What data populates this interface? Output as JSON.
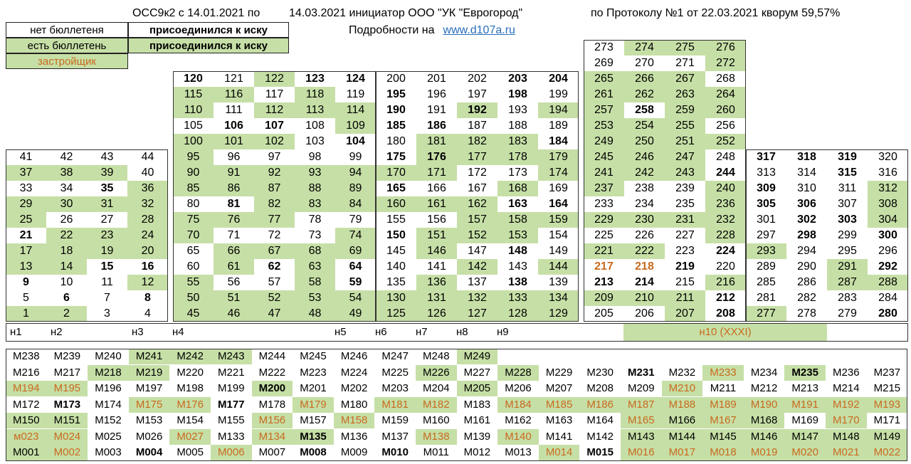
{
  "header": {
    "part1": "ОСС9к2 с 14.01.2021 по",
    "part2": "14.03.2021 инициатор ООО \"УК \"Еврогород\"",
    "part3": "по Протоколу №1 от 22.03.2021 кворум 59,57%",
    "details_label": "Подробности на",
    "link_text": "www.d107a.ru"
  },
  "legend": {
    "no_ballot": "нет бюллетеня",
    "has_ballot": "есть бюллетень",
    "joined": "присоединился к иску",
    "developer": "застройщик"
  },
  "colors": {
    "green": "#c6dfa6",
    "developer_text": "#c86a1e"
  },
  "sections": {
    "s1": [
      [
        "41",
        "42",
        "43",
        "44"
      ],
      [
        "37",
        "38",
        "39",
        "40"
      ],
      [
        "33",
        "34",
        "35",
        "36"
      ],
      [
        "29",
        "30",
        "31",
        "32"
      ],
      [
        "25",
        "26",
        "27",
        "28"
      ],
      [
        "21",
        "22",
        "23",
        "24"
      ],
      [
        "17",
        "18",
        "19",
        "20"
      ],
      [
        "13",
        "14",
        "15",
        "16"
      ],
      [
        "9",
        "10",
        "11",
        "12"
      ],
      [
        "5",
        "6",
        "7",
        "8"
      ],
      [
        "1",
        "2",
        "3",
        "4"
      ]
    ],
    "s1_style": [
      "....",
      "gggw",
      "wwbg",
      "gggg",
      "gwwg",
      "bggg",
      "gggg",
      "ggbb",
      "bwwg",
      "wbwb",
      "ggww"
    ],
    "s2": [
      [
        "120",
        "121",
        "122",
        "123",
        "124"
      ],
      [
        "115",
        "116",
        "117",
        "118",
        "119"
      ],
      [
        "110",
        "111",
        "112",
        "113",
        "114"
      ],
      [
        "105",
        "106",
        "107",
        "108",
        "109"
      ],
      [
        "100",
        "101",
        "102",
        "103",
        "104"
      ],
      [
        "95",
        "96",
        "97",
        "98",
        "99"
      ],
      [
        "90",
        "91",
        "92",
        "93",
        "94"
      ],
      [
        "85",
        "86",
        "87",
        "88",
        "89"
      ],
      [
        "80",
        "81",
        "82",
        "83",
        "84"
      ],
      [
        "75",
        "76",
        "77",
        "78",
        "79"
      ],
      [
        "70",
        "71",
        "72",
        "73",
        "74"
      ],
      [
        "65",
        "66",
        "67",
        "68",
        "69"
      ],
      [
        "60",
        "61",
        "62",
        "63",
        "64"
      ],
      [
        "55",
        "56",
        "57",
        "58",
        "59"
      ],
      [
        "50",
        "51",
        "52",
        "53",
        "54"
      ],
      [
        "45",
        "46",
        "47",
        "48",
        "49"
      ]
    ],
    "s2_style": [
      "BwgBB",
      "ggwgw",
      "gwggg",
      "wBBwg",
      "gggwB",
      "gwwww",
      "ggggg",
      "ggggg",
      "wBggg",
      "gggww",
      "gwwwg",
      "wgggg",
      "wgBgB",
      "gwwgB",
      "ggggg",
      "ggggg"
    ],
    "s3": [
      [
        "200",
        "201",
        "202",
        "203",
        "204"
      ],
      [
        "195",
        "196",
        "197",
        "198",
        "199"
      ],
      [
        "190",
        "191",
        "192",
        "193",
        "194"
      ],
      [
        "185",
        "186",
        "187",
        "188",
        "189"
      ],
      [
        "180",
        "181",
        "182",
        "183",
        "184"
      ],
      [
        "175",
        "176",
        "177",
        "178",
        "179"
      ],
      [
        "170",
        "171",
        "172",
        "173",
        "174"
      ],
      [
        "165",
        "166",
        "167",
        "168",
        "169"
      ],
      [
        "160",
        "161",
        "162",
        "163",
        "164"
      ],
      [
        "155",
        "156",
        "157",
        "158",
        "159"
      ],
      [
        "150",
        "151",
        "152",
        "153",
        "154"
      ],
      [
        "145",
        "146",
        "147",
        "148",
        "149"
      ],
      [
        "140",
        "141",
        "142",
        "143",
        "144"
      ],
      [
        "135",
        "136",
        "137",
        "138",
        "139"
      ],
      [
        "130",
        "131",
        "132",
        "133",
        "134"
      ],
      [
        "125",
        "126",
        "127",
        "128",
        "129"
      ]
    ],
    "s3_style": [
      "wwwBB",
      "Bwwbw",
      "BwGwg",
      "BBwww",
      "wgggB",
      "BGggg",
      "ggwwg",
      "Bwwgw",
      "gggBB",
      "wwggg",
      "Bgggw",
      "wgwBw",
      "wwgwg",
      "wgwBw",
      "ggggg",
      "ggggg"
    ],
    "s4": [
      [
        "273",
        "274",
        "275",
        "276"
      ],
      [
        "269",
        "270",
        "271",
        "272"
      ],
      [
        "265",
        "266",
        "267",
        "268"
      ],
      [
        "261",
        "262",
        "263",
        "264"
      ],
      [
        "257",
        "258",
        "259",
        "260"
      ],
      [
        "253",
        "254",
        "255",
        "256"
      ],
      [
        "249",
        "250",
        "251",
        "252"
      ],
      [
        "245",
        "246",
        "247",
        "248"
      ],
      [
        "241",
        "242",
        "243",
        "244"
      ],
      [
        "237",
        "238",
        "239",
        "240"
      ],
      [
        "233",
        "234",
        "235",
        "236"
      ],
      [
        "229",
        "230",
        "231",
        "232"
      ],
      [
        "225",
        "226",
        "227",
        "228"
      ],
      [
        "221",
        "222",
        "223",
        "224"
      ],
      [
        "217",
        "218",
        "219",
        "220"
      ],
      [
        "213",
        "214",
        "215",
        "216"
      ],
      [
        "209",
        "210",
        "211",
        "212"
      ],
      [
        "205",
        "206",
        "207",
        "208"
      ]
    ],
    "s4_style": [
      "wggg",
      "wwwg",
      "gggw",
      "gggg",
      "gBgg",
      "gggw",
      "gggg",
      "gggw",
      "gggB",
      "gwwg",
      "wwwg",
      "gggg",
      "wwwg",
      "ggwB",
      "ooBw",
      "BBwg",
      "gggB",
      "wwgB"
    ],
    "s5": [
      [
        "317",
        "318",
        "319",
        "320"
      ],
      [
        "313",
        "314",
        "315",
        "316"
      ],
      [
        "309",
        "310",
        "311",
        "312"
      ],
      [
        "305",
        "306",
        "307",
        "308"
      ],
      [
        "301",
        "302",
        "303",
        "304"
      ],
      [
        "297",
        "298",
        "299",
        "300"
      ],
      [
        "293",
        "294",
        "295",
        "296"
      ],
      [
        "289",
        "290",
        "291",
        "292"
      ],
      [
        "285",
        "286",
        "287",
        "288"
      ],
      [
        "281",
        "282",
        "283",
        "284"
      ],
      [
        "277",
        "278",
        "279",
        "280"
      ]
    ],
    "s5_style": [
      "BBBw",
      "wwBw",
      "Bwwg",
      "BBwg",
      "wBBg",
      "wBwB",
      "gwww",
      "wwgB",
      "wwgg",
      "wwww",
      "gwwB"
    ],
    "nlabels": [
      {
        "t": "н1",
        "x": 8
      },
      {
        "t": "н2",
        "x": 65
      },
      {
        "t": "н3",
        "x": 179
      },
      {
        "t": "н4",
        "x": 236
      },
      {
        "t": "н5",
        "x": 464
      },
      {
        "t": "н6",
        "x": 521
      },
      {
        "t": "н7",
        "x": 578
      },
      {
        "t": "н8",
        "x": 635
      },
      {
        "t": "н9",
        "x": 692
      },
      {
        "t": "н10 (XXXI)",
        "x": 876
      }
    ],
    "m": [
      [
        "M238",
        "M239",
        "M240",
        "M241",
        "M242",
        "M243",
        "M244",
        "M245",
        "M246",
        "M247",
        "M248",
        "M249"
      ],
      [
        "M216",
        "M217",
        "M218",
        "M219",
        "M220",
        "M221",
        "M222",
        "M223",
        "M224",
        "M225",
        "M226",
        "M227",
        "M228",
        "M229",
        "M230",
        "M231",
        "M232",
        "M233",
        "M234",
        "M235",
        "M236",
        "M237"
      ],
      [
        "M194",
        "M195",
        "M196",
        "M197",
        "M198",
        "M199",
        "M200",
        "M201",
        "M202",
        "M203",
        "M204",
        "M205",
        "M206",
        "M207",
        "M208",
        "M209",
        "M210",
        "M211",
        "M212",
        "M213",
        "M214",
        "M215"
      ],
      [
        "M172",
        "M173",
        "M174",
        "M175",
        "M176",
        "M177",
        "M178",
        "M179",
        "M180",
        "M181",
        "M182",
        "M183",
        "M184",
        "M185",
        "M186",
        "M187",
        "M188",
        "M189",
        "M190",
        "M191",
        "M192",
        "M193"
      ],
      [
        "M150",
        "M151",
        "M152",
        "M153",
        "M154",
        "M155",
        "M156",
        "M157",
        "M158",
        "M159",
        "M160",
        "M161",
        "M162",
        "M163",
        "M164",
        "M165",
        "M166",
        "M167",
        "M168",
        "M169",
        "M170",
        "M171"
      ],
      [
        "м023",
        "M024",
        "M025",
        "M026",
        "M027",
        "M133",
        "M134",
        "M135",
        "M136",
        "M137",
        "M138",
        "M139",
        "M140",
        "M141",
        "M142",
        "M143",
        "M144",
        "M145",
        "M146",
        "M147",
        "M148",
        "M149"
      ],
      [
        "M001",
        "M002",
        "M003",
        "M004",
        "M005",
        "M006",
        "M007",
        "M008",
        "M009",
        "M010",
        "M011",
        "M012",
        "M013",
        "M014",
        "M015",
        "M016",
        "M017",
        "M018",
        "M019",
        "M020",
        "M021",
        "M022"
      ]
    ],
    "m_style": [
      [
        "w",
        "w",
        "w",
        "g",
        "g",
        "g",
        "w",
        "w",
        "w",
        "w",
        "w",
        "g"
      ],
      [
        "w",
        "w",
        "g",
        "g",
        "w",
        "w",
        "w",
        "w",
        "w",
        "w",
        "g",
        "w",
        "g",
        "w",
        "w",
        "B",
        "w",
        "o",
        "w",
        "gB",
        "w",
        "w"
      ],
      [
        "o",
        "o",
        "w",
        "w",
        "w",
        "w",
        "gB",
        "w",
        "w",
        "w",
        "w",
        "g",
        "w",
        "w",
        "w",
        "w",
        "o",
        "w",
        "w",
        "w",
        "w",
        "w"
      ],
      [
        "w",
        "B",
        "w",
        "o",
        "o",
        "B",
        "w",
        "o",
        "w",
        "o",
        "o",
        "w",
        "o",
        "o",
        "o",
        "o",
        "o",
        "o",
        "o",
        "o",
        "o",
        "o"
      ],
      [
        "g",
        "g",
        "w",
        "w",
        "w",
        "w",
        "o",
        "w",
        "o",
        "w",
        "w",
        "w",
        "w",
        "w",
        "w",
        "o",
        "g",
        "o",
        "g",
        "w",
        "o",
        "w"
      ],
      [
        "o",
        "o",
        "w",
        "w",
        "o",
        "w",
        "o",
        "gB",
        "w",
        "w",
        "o",
        "w",
        "o",
        "w",
        "w",
        "g",
        "g",
        "g",
        "g",
        "g",
        "g",
        "g"
      ],
      [
        "g",
        "o",
        "w",
        "B",
        "w",
        "o",
        "w",
        "B",
        "w",
        "B",
        "w",
        "w",
        "w",
        "o",
        "B",
        "o",
        "o",
        "o",
        "o",
        "o",
        "o",
        "o"
      ]
    ]
  }
}
